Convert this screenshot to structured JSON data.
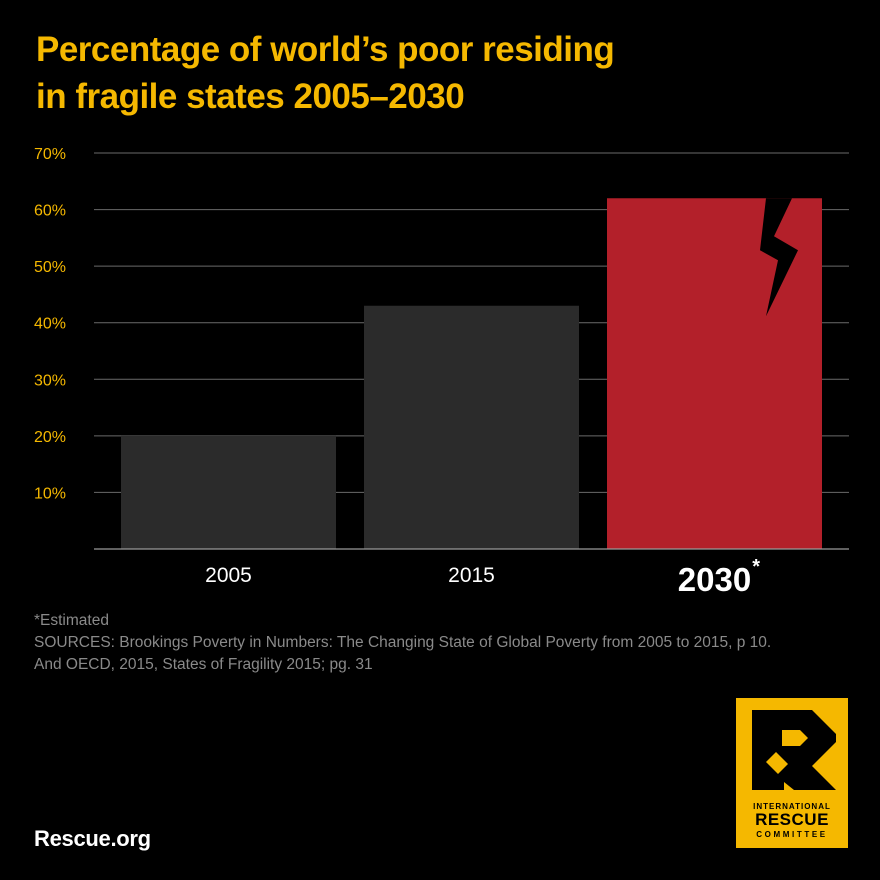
{
  "title": {
    "line1": "Percentage of world’s poor residing",
    "line2": "in fragile states 2005–2030"
  },
  "chart_data": {
    "type": "bar",
    "title": "Percentage of world’s poor residing in fragile states 2005–2030",
    "categories": [
      "2005",
      "2015",
      "2030"
    ],
    "category_markers": [
      "",
      "",
      "*"
    ],
    "values": [
      20,
      43,
      62
    ],
    "highlight_index": 2,
    "colors": {
      "bar": "#2b2b2b",
      "highlight": "#b3202a",
      "tick_label": "#f5b800",
      "grid": "#6a6a6a"
    },
    "ylim": [
      0,
      70
    ],
    "yticks": [
      10,
      20,
      30,
      40,
      50,
      60,
      70
    ],
    "ytick_labels": [
      "10%",
      "20%",
      "30%",
      "40%",
      "50%",
      "60%",
      "70%"
    ],
    "grid": true,
    "xlabel": "",
    "ylabel": ""
  },
  "notes": {
    "estimated": "*Estimated",
    "sources_line1": "SOURCES: Brookings Poverty in Numbers: The Changing State of Global Poverty from 2005 to 2015, p 10.",
    "sources_line2": "And OECD, 2015, States of Fragility 2015; pg. 31"
  },
  "footer": {
    "site": "Rescue.org"
  },
  "logo": {
    "line1": "INTERNATIONAL",
    "line2": "RESCUE",
    "line3": "COMMITTEE",
    "color": "#f5b800"
  }
}
